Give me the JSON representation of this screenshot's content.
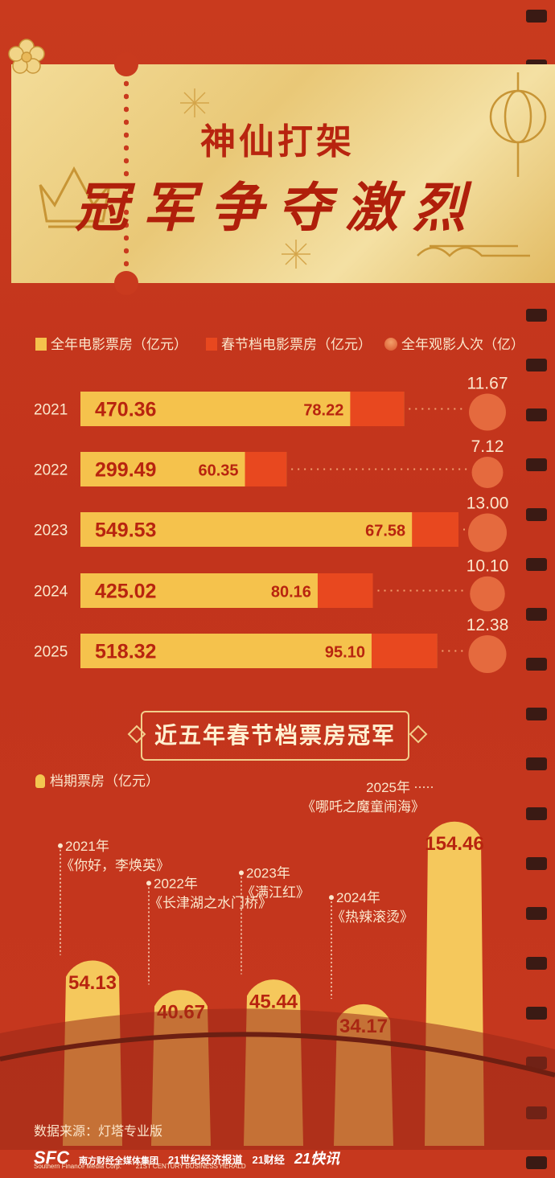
{
  "header": {
    "title_line1": "神仙打架",
    "title_line2": "冠军争夺激烈"
  },
  "legend": {
    "annual": "全年电影票房（亿元）",
    "spring": "春节档电影票房（亿元）",
    "audience": "全年观影人次（亿）"
  },
  "colors": {
    "annual": "#f5c24c",
    "spring": "#e8481f",
    "background": "#c93a1e",
    "gold": "#f3dc98"
  },
  "chart_data": [
    {
      "type": "bar",
      "categories": [
        "2021",
        "2022",
        "2023",
        "2024",
        "2025"
      ],
      "series": [
        {
          "name": "全年电影票房（亿元）",
          "values": [
            470.36,
            299.49,
            549.53,
            425.02,
            518.32
          ]
        },
        {
          "name": "春节档电影票房（亿元）",
          "values": [
            78.22,
            60.35,
            67.58,
            80.16,
            95.1
          ]
        },
        {
          "name": "全年观影人次（亿）",
          "values": [
            11.67,
            7.12,
            13.0,
            10.1,
            12.38
          ]
        }
      ],
      "labels": {
        "annual": [
          "470.36",
          "299.49",
          "549.53",
          "425.02",
          "518.32"
        ],
        "spring": [
          "78.22",
          "60.35",
          "67.58",
          "80.16",
          "95.10"
        ],
        "audience": [
          "11.67",
          "7.12",
          "13.00",
          "10.10",
          "12.38"
        ]
      }
    },
    {
      "type": "bar",
      "title": "近五年春节档票房冠军",
      "ylabel": "档期票房（亿元）",
      "categories": [
        "2021年",
        "2022年",
        "2023年",
        "2024年",
        "2025年"
      ],
      "films": [
        "《你好，李焕英》",
        "《长津湖之水门桥》",
        "《满江红》",
        "《热辣滚烫》",
        "《哪吒之魔童闹海》"
      ],
      "values": [
        54.13,
        40.67,
        45.44,
        34.17,
        154.46
      ],
      "value_labels": [
        "54.13",
        "40.67",
        "45.44",
        "34.17",
        "154.46"
      ]
    }
  ],
  "footer": {
    "source": "数据来源：灯塔专业版",
    "logo_sfc": "SFC",
    "logo_sfc_cn": "南方财经全媒体集团",
    "logo_sfc_en": "Southern Finance Media Corp.",
    "logo_21cbh": "21世纪经济报道",
    "logo_21cbh_en": "21ST CENTURY BUSINESS HERALD",
    "logo_21caijing": "21财经",
    "logo_21kuaixun": "21快讯"
  }
}
